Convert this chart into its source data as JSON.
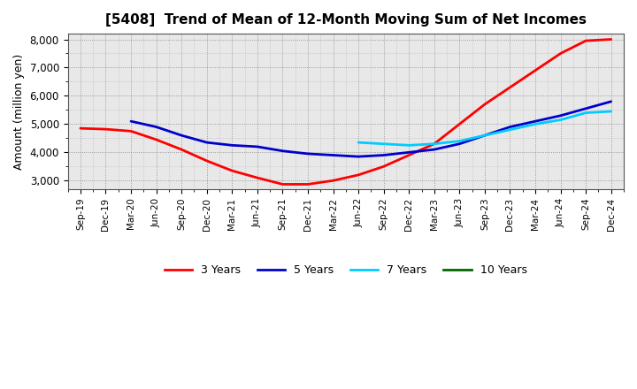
{
  "title": "[5408]  Trend of Mean of 12-Month Moving Sum of Net Incomes",
  "ylabel": "Amount (million yen)",
  "xlabels": [
    "Sep-19",
    "Dec-19",
    "Mar-20",
    "Jun-20",
    "Sep-20",
    "Dec-20",
    "Mar-21",
    "Jun-21",
    "Sep-21",
    "Dec-21",
    "Mar-22",
    "Jun-22",
    "Sep-22",
    "Dec-22",
    "Mar-23",
    "Jun-23",
    "Sep-23",
    "Dec-23",
    "Mar-24",
    "Jun-24",
    "Sep-24",
    "Dec-24"
  ],
  "ylim": [
    2700,
    8200
  ],
  "yticks": [
    3000,
    4000,
    5000,
    6000,
    7000,
    8000
  ],
  "bg_color": "#e8e8e8",
  "series": {
    "3 Years": {
      "color": "#ff0000",
      "data": [
        4850,
        4820,
        4750,
        4450,
        4100,
        3700,
        3350,
        3100,
        2870,
        2870,
        3000,
        3200,
        3500,
        3900,
        4300,
        5000,
        5700,
        6300,
        6900,
        7500,
        7950,
        8000
      ]
    },
    "5 Years": {
      "color": "#0000cc",
      "data": [
        null,
        null,
        5100,
        4900,
        4600,
        4350,
        4250,
        4200,
        4050,
        3950,
        3900,
        3850,
        3900,
        4000,
        4100,
        4300,
        4600,
        4900,
        5100,
        5300,
        5550,
        5800
      ]
    },
    "7 Years": {
      "color": "#00ccff",
      "data": [
        null,
        null,
        null,
        null,
        null,
        null,
        null,
        null,
        null,
        null,
        null,
        4350,
        4300,
        4250,
        4300,
        4400,
        4600,
        4800,
        5000,
        5150,
        5400,
        5450
      ]
    },
    "10 Years": {
      "color": "#006600",
      "data": [
        null,
        null,
        null,
        null,
        null,
        null,
        null,
        null,
        null,
        null,
        null,
        null,
        null,
        null,
        null,
        null,
        null,
        null,
        null,
        null,
        null,
        null
      ]
    }
  },
  "legend_colors": [
    "#ff0000",
    "#0000cc",
    "#00ccff",
    "#006600"
  ],
  "legend_labels": [
    "3 Years",
    "5 Years",
    "7 Years",
    "10 Years"
  ]
}
